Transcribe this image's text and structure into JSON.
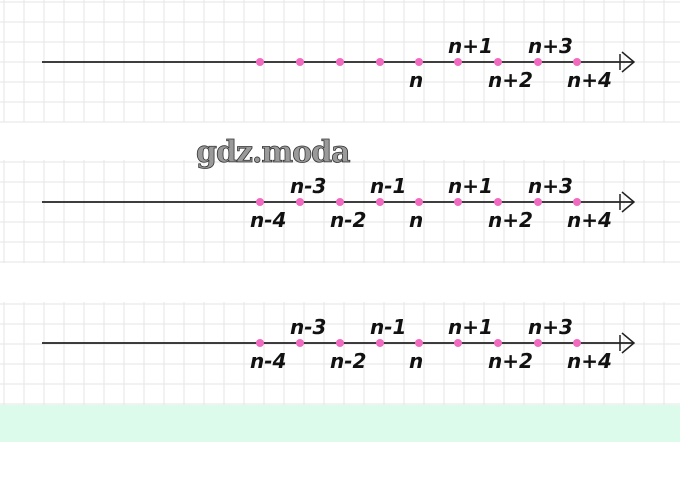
{
  "watermark": "gdz.moda",
  "colors": {
    "point": "#f06bbf",
    "axis": "#222222",
    "grid": "#e6e6e6",
    "band": "#dcfbea"
  },
  "number_lines": [
    {
      "labels": [
        "",
        "",
        "",
        "",
        "n",
        "n+1",
        "n+2",
        "n+3",
        "n+4"
      ]
    },
    {
      "labels": [
        "n-4",
        "n-3",
        "n-2",
        "n-1",
        "n",
        "n+1",
        "n+2",
        "n+3",
        "n+4"
      ]
    },
    {
      "labels": [
        "n-4",
        "n-3",
        "n-2",
        "n-1",
        "n",
        "n+1",
        "n+2",
        "n+3",
        "n+4"
      ]
    }
  ]
}
